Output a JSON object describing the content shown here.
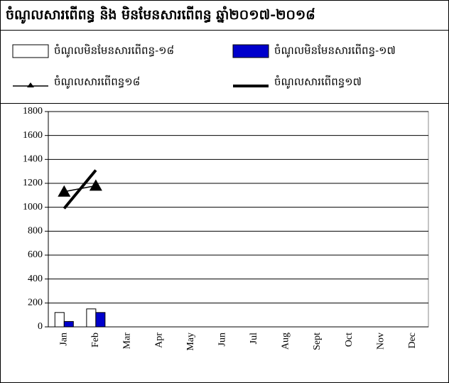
{
  "chart_data": {
    "type": "bar",
    "title": "ចំណូលសារពើពន្ធ និង មិនមែនសារពើពន្ធ ឆ្នាំ២០១៧-២០១៨",
    "categories": [
      "Jan",
      "Feb",
      "Mar",
      "Apr",
      "May",
      "Jun",
      "Jul",
      "Aug",
      "Sept",
      "Oct",
      "Nov",
      "Dec"
    ],
    "series": [
      {
        "name": "ចំណូលមិនមែនសារពើពន្ធ-១៨",
        "type": "bar",
        "color": "#ffffff",
        "values": [
          120,
          150,
          null,
          null,
          null,
          null,
          null,
          null,
          null,
          null,
          null,
          null
        ]
      },
      {
        "name": "ចំណូលមិនមែនសារពើពន្ធ-១៧",
        "type": "bar",
        "color": "#0000cc",
        "values": [
          45,
          120,
          null,
          null,
          null,
          null,
          null,
          null,
          null,
          null,
          null,
          null
        ]
      },
      {
        "name": "ចំណូលសារពើពន្ធ១៨",
        "type": "line",
        "marker": "triangle",
        "color": "#000000",
        "values": [
          1130,
          1180,
          null,
          null,
          null,
          null,
          null,
          null,
          null,
          null,
          null,
          null
        ]
      },
      {
        "name": "ចំណូលសារពើពន្ធ១៧",
        "type": "line",
        "color": "#000000",
        "values": [
          990,
          1310,
          null,
          null,
          null,
          null,
          null,
          null,
          null,
          null,
          null,
          null
        ]
      }
    ],
    "ylim": [
      0,
      1800
    ],
    "yticks": [
      0,
      200,
      400,
      600,
      800,
      1000,
      1200,
      1400,
      1600,
      1800
    ],
    "grid": true
  }
}
